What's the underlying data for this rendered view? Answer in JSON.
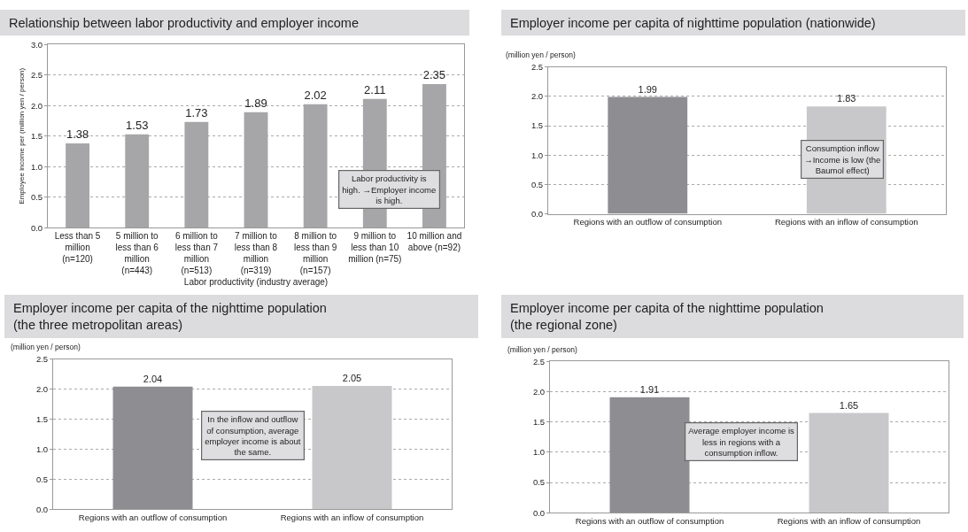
{
  "chart_data": [
    {
      "type": "bar",
      "title": "Relationship between labor productivity and employer income",
      "xlabel": "Labor productivity (industry average)",
      "ylabel": "Employee income per (million yen / person)",
      "categories": [
        "Less than 5 million (n=120)",
        "5 million to less than 6 million (n=443)",
        "6 million to less than 7 million (n=513)",
        "7 million to less than 8 million (n=319)",
        "8 million to less than 9 million (n=157)",
        "9 million to less than 10 million (n=75)",
        "10 million and above (n=92)"
      ],
      "values": [
        1.38,
        1.53,
        1.73,
        1.89,
        2.02,
        2.11,
        2.35
      ],
      "color": "#a6a6a9",
      "data_labels": true,
      "ylim": [
        0,
        3
      ],
      "yticks": [
        {
          "value": 0,
          "label": "0.0"
        },
        {
          "value": 0.5,
          "label": "0.5"
        },
        {
          "value": 1,
          "label": "1.0"
        },
        {
          "value": 1.5,
          "label": "1.5"
        },
        {
          "value": 2,
          "label": "2.0"
        },
        {
          "value": 2.5,
          "label": "2.5"
        },
        {
          "value": 3,
          "label": "3.0"
        }
      ],
      "grid": "y",
      "annotations": [
        "Labor productivity is high. →Employer income is high."
      ]
    },
    {
      "type": "bar",
      "title": "Employer income per capita of nighttime population (nationwide)",
      "ylabel": "(million yen / person)",
      "categories": [
        "Regions with an outflow of consumption",
        "Regions with an inflow of consumption"
      ],
      "values": [
        1.99,
        1.83
      ],
      "colors": [
        "#8e8e92",
        "#c8c8ca"
      ],
      "data_labels": true,
      "ylim": [
        0,
        2.5
      ],
      "yticks": [
        {
          "value": 0,
          "label": "0.0"
        },
        {
          "value": 0.5,
          "label": "0.5"
        },
        {
          "value": 1,
          "label": "1.0"
        },
        {
          "value": 1.5,
          "label": "1.5"
        },
        {
          "value": 2,
          "label": "2.0"
        },
        {
          "value": 2.5,
          "label": "2.5"
        }
      ],
      "grid": "y",
      "annotations": [
        "Consumption inflow →Income is low (the Baumol effect)"
      ]
    },
    {
      "type": "bar",
      "title": "Employer income per capita of the nighttime population (the three metropolitan areas)",
      "ylabel": "(million yen / person)",
      "categories": [
        "Regions with an outflow of consumption",
        "Regions with an inflow of consumption"
      ],
      "values": [
        2.04,
        2.05
      ],
      "colors": [
        "#8e8e92",
        "#c8c8ca"
      ],
      "data_labels": true,
      "ylim": [
        0,
        2.5
      ],
      "yticks": [
        {
          "value": 0,
          "label": "0.0"
        },
        {
          "value": 0.5,
          "label": "0.5"
        },
        {
          "value": 1,
          "label": "1.0"
        },
        {
          "value": 1.5,
          "label": "1.5"
        },
        {
          "value": 2,
          "label": "2.0"
        },
        {
          "value": 2.5,
          "label": "2.5"
        }
      ],
      "grid": "y",
      "annotations": [
        "In the inflow and outflow of consumption, average employer income is about the same."
      ]
    },
    {
      "type": "bar",
      "title": "Employer income per capita of the nighttime population (the regional zone)",
      "ylabel": "(million yen / person)",
      "categories": [
        "Regions with an outflow of consumption",
        "Regions with an inflow of consumption"
      ],
      "values": [
        1.91,
        1.65
      ],
      "colors": [
        "#8e8e92",
        "#c8c8ca"
      ],
      "data_labels": true,
      "ylim": [
        0,
        2.5
      ],
      "yticks": [
        {
          "value": 0,
          "label": "0.0"
        },
        {
          "value": 0.5,
          "label": "0.5"
        },
        {
          "value": 1,
          "label": "1.0"
        },
        {
          "value": 1.5,
          "label": "1.5"
        },
        {
          "value": 2,
          "label": "2.0"
        },
        {
          "value": 2.5,
          "label": "2.5"
        }
      ],
      "grid": "y",
      "annotations": [
        "Average employer income is less in regions with a consumption inflow."
      ]
    }
  ]
}
